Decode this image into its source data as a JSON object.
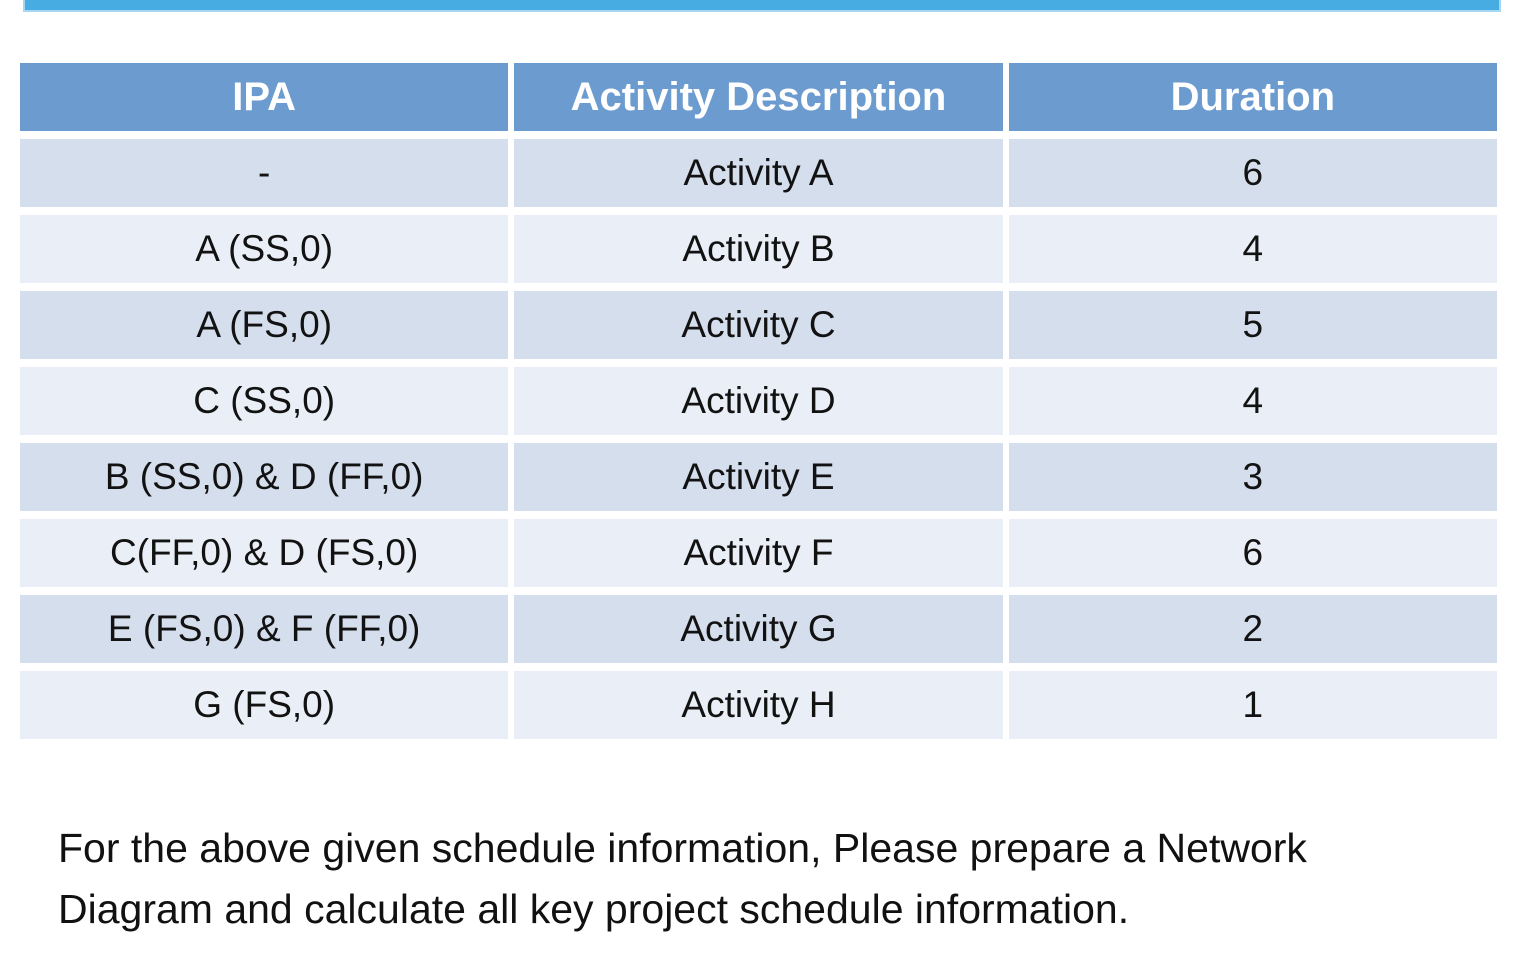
{
  "colors": {
    "top_bar": "#47ACE2",
    "top_bar_border": "#A5D6F2",
    "table_header_bg": "#6C9BD0",
    "table_header_text": "#FFFFFF",
    "row_band_dark": "#D5DEED",
    "row_band_light": "#EAEEF6",
    "body_text": "#111111"
  },
  "table": {
    "columns": [
      "IPA",
      "Activity Description",
      "Duration"
    ],
    "rows": [
      {
        "ipa": "-",
        "description": "Activity A",
        "duration": "6"
      },
      {
        "ipa": "A (SS,0)",
        "description": "Activity B",
        "duration": "4"
      },
      {
        "ipa": "A (FS,0)",
        "description": "Activity C",
        "duration": "5"
      },
      {
        "ipa": "C (SS,0)",
        "description": "Activity D",
        "duration": "4"
      },
      {
        "ipa": "B (SS,0) & D (FF,0)",
        "description": "Activity E",
        "duration": "3"
      },
      {
        "ipa": "C(FF,0) & D (FS,0)",
        "description": "Activity F",
        "duration": "6"
      },
      {
        "ipa": "E (FS,0) & F (FF,0)",
        "description": "Activity G",
        "duration": "2"
      },
      {
        "ipa": "G (FS,0)",
        "description": "Activity H",
        "duration": "1"
      }
    ]
  },
  "instruction": {
    "line1": "For the above given schedule information, Please prepare a Network",
    "line2": "Diagram and calculate all key project schedule information."
  }
}
